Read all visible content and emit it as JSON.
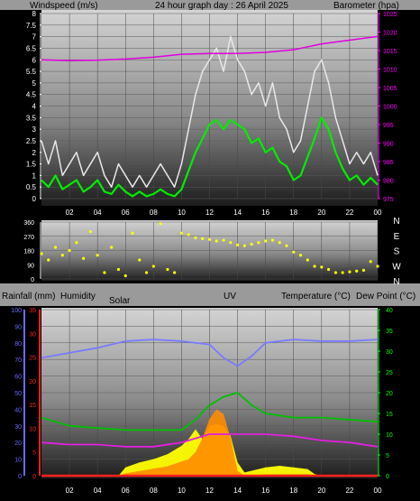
{
  "header": {
    "left": "Windspeed (m/s)",
    "center": "24 hour graph day : 26 April 2025",
    "right": "Barometer (hpa)"
  },
  "mid_header": {
    "rain": "Rainfall (mm)",
    "humidity": "Humidity",
    "solar": "Solar",
    "uv": "UV",
    "temp": "Temperature (°C)",
    "dew": "Dew Point (°C)"
  },
  "colors": {
    "background": "#000000",
    "header_bg": "#9a9a9a",
    "gust": "#e8e8e8",
    "wind_avg": "#00ee00",
    "barometer": "#e000e0",
    "wind_dir": "#ffff00",
    "humidity": "#7a7aff",
    "temperature": "#00c000",
    "dew_point": "#e020e0",
    "solar": "#ffff00",
    "uv": "#ff8c00",
    "rain": "#ff2020",
    "wind_axis": "#ffffff",
    "baro_axis": "#ff00ff",
    "rain_axis": "#ff2020",
    "hum_axis": "#6a6aff",
    "temp_axis": "#00ff00"
  },
  "chart_data": [
    {
      "type": "line",
      "title": "24 hour graph day : 26 April 2025",
      "x_ticks": [
        "02",
        "04",
        "06",
        "08",
        "10",
        "12",
        "14",
        "16",
        "18",
        "20",
        "22",
        "00"
      ],
      "xlim": [
        0,
        24
      ],
      "y_left": {
        "label": "Windspeed (m/s)",
        "lim": [
          0,
          8
        ],
        "ticks": [
          "0",
          "0.5",
          "1",
          "1.5",
          "2",
          "2.5",
          "3",
          "3.5",
          "4",
          "4.5",
          "5",
          "5.5",
          "6",
          "6.5",
          "7",
          "7.5",
          "8"
        ]
      },
      "y_right": {
        "label": "Barometer (hpa)",
        "lim": [
          975,
          1025
        ],
        "ticks": [
          "975",
          "980",
          "985",
          "990",
          "995",
          "1000",
          "1005",
          "1010",
          "1015",
          "1020",
          "1025"
        ]
      },
      "series": [
        {
          "name": "gust",
          "axis": "left",
          "x": [
            0,
            0.5,
            1,
            1.5,
            2,
            2.5,
            3,
            3.5,
            4,
            4.5,
            5,
            5.5,
            6,
            6.5,
            7,
            7.5,
            8,
            8.5,
            9,
            9.5,
            10,
            10.5,
            11,
            11.5,
            12,
            12.5,
            13,
            13.5,
            14,
            14.5,
            15,
            15.5,
            16,
            16.5,
            17,
            17.5,
            18,
            18.5,
            19,
            19.5,
            20,
            20.5,
            21,
            21.5,
            22,
            22.5,
            23,
            23.5,
            24
          ],
          "y": [
            2.5,
            1.5,
            2.5,
            1.0,
            1.5,
            2.0,
            1.0,
            1.5,
            2.0,
            1.0,
            0.5,
            1.5,
            1.0,
            0.5,
            1.0,
            0.5,
            1.0,
            1.5,
            1.0,
            0.5,
            1.5,
            3.0,
            4.5,
            5.5,
            6.0,
            6.5,
            5.5,
            7.0,
            6.0,
            5.5,
            4.5,
            5.0,
            4.0,
            5.0,
            3.5,
            3.0,
            2.0,
            2.5,
            4.0,
            5.5,
            6.0,
            5.0,
            3.5,
            2.5,
            1.5,
            2.0,
            1.5,
            2.0,
            1.0
          ]
        },
        {
          "name": "average",
          "axis": "left",
          "x": [
            0,
            0.5,
            1,
            1.5,
            2,
            2.5,
            3,
            3.5,
            4,
            4.5,
            5,
            5.5,
            6,
            6.5,
            7,
            7.5,
            8,
            8.5,
            9,
            9.5,
            10,
            10.5,
            11,
            11.5,
            12,
            12.5,
            13,
            13.5,
            14,
            14.5,
            15,
            15.5,
            16,
            16.5,
            17,
            17.5,
            18,
            18.5,
            19,
            19.5,
            20,
            20.5,
            21,
            21.5,
            22,
            22.5,
            23,
            23.5,
            24
          ],
          "y": [
            0.8,
            0.5,
            1.0,
            0.4,
            0.6,
            0.8,
            0.3,
            0.5,
            0.8,
            0.3,
            0.2,
            0.6,
            0.3,
            0.1,
            0.3,
            0.1,
            0.2,
            0.4,
            0.2,
            0.1,
            0.4,
            1.2,
            2.0,
            2.6,
            3.2,
            3.4,
            3.0,
            3.4,
            3.2,
            3.0,
            2.4,
            2.6,
            2.0,
            2.2,
            1.6,
            1.4,
            0.8,
            1.0,
            1.8,
            2.6,
            3.5,
            3.0,
            2.0,
            1.3,
            0.8,
            1.0,
            0.6,
            0.9,
            0.6
          ]
        },
        {
          "name": "barometer",
          "axis": "right",
          "x": [
            0,
            2,
            4,
            6,
            8,
            10,
            12,
            14,
            16,
            18,
            20,
            22,
            24
          ],
          "y": [
            1012.5,
            1012.3,
            1012.4,
            1012.7,
            1013.2,
            1014.0,
            1014.2,
            1014.2,
            1014.5,
            1015.2,
            1016.8,
            1017.8,
            1018.8
          ]
        }
      ]
    },
    {
      "type": "scatter",
      "name": "Wind direction",
      "xlim": [
        0,
        24
      ],
      "y_left": {
        "lim": [
          0,
          360
        ],
        "ticks": [
          "0",
          "90",
          "180",
          "270",
          "360"
        ]
      },
      "y_right": {
        "ticks": [
          "N",
          "W",
          "S",
          "E",
          "N"
        ]
      },
      "series": [
        {
          "name": "direction",
          "x": [
            0,
            0.5,
            1,
            1.5,
            2,
            2.5,
            3,
            3.5,
            4,
            4.5,
            5,
            5.5,
            6,
            6.5,
            7,
            7.5,
            8,
            8.5,
            9,
            9.5,
            10,
            10.5,
            11,
            11.5,
            12,
            12.5,
            13,
            13.5,
            14,
            14.5,
            15,
            15.5,
            16,
            16.5,
            17,
            17.5,
            18,
            18.5,
            19,
            19.5,
            20,
            20.5,
            21,
            21.5,
            22,
            22.5,
            23,
            23.5,
            24
          ],
          "y": [
            160,
            120,
            200,
            150,
            180,
            230,
            130,
            300,
            150,
            40,
            200,
            60,
            20,
            290,
            120,
            40,
            80,
            350,
            60,
            40,
            290,
            280,
            260,
            255,
            250,
            240,
            245,
            230,
            215,
            210,
            220,
            230,
            240,
            245,
            230,
            210,
            170,
            150,
            120,
            80,
            75,
            60,
            40,
            40,
            45,
            50,
            55,
            110,
            80
          ]
        }
      ]
    },
    {
      "type": "line",
      "x_ticks": [
        "02",
        "04",
        "06",
        "08",
        "10",
        "12",
        "14",
        "16",
        "18",
        "20",
        "22",
        "00"
      ],
      "xlim": [
        0,
        24
      ],
      "y_humidity": {
        "label": "Humidity",
        "lim": [
          0,
          100
        ],
        "ticks": [
          "0",
          "10",
          "20",
          "30",
          "40",
          "50",
          "60",
          "70",
          "80",
          "90",
          "100"
        ]
      },
      "y_rain": {
        "label": "Rainfall (mm)",
        "lim": [
          0,
          35
        ],
        "ticks": [
          "0",
          "5",
          "10",
          "15",
          "20",
          "25",
          "30",
          "35"
        ]
      },
      "y_temp": {
        "label": "Temperature (°C)",
        "lim": [
          0,
          40
        ],
        "ticks": [
          "0",
          "5",
          "10",
          "15",
          "20",
          "25",
          "30",
          "35",
          "40"
        ]
      },
      "series": [
        {
          "name": "humidity",
          "axis": "humidity",
          "x": [
            0,
            2,
            4,
            6,
            8,
            10,
            12,
            13,
            14,
            15,
            16,
            18,
            20,
            22,
            24
          ],
          "y": [
            71,
            74,
            77,
            81,
            82,
            81,
            79,
            71,
            66,
            72,
            80,
            82,
            81,
            81,
            82
          ]
        },
        {
          "name": "temperature",
          "axis": "temp",
          "x": [
            0,
            2,
            4,
            6,
            8,
            10,
            11,
            12,
            13,
            14,
            15,
            16,
            18,
            20,
            22,
            24
          ],
          "y": [
            14,
            12,
            11.5,
            11,
            11,
            11,
            13.5,
            17,
            19,
            20,
            17,
            15,
            14,
            14,
            13.5,
            13
          ]
        },
        {
          "name": "dew point",
          "axis": "temp",
          "x": [
            0,
            2,
            4,
            6,
            8,
            10,
            12,
            14,
            16,
            18,
            20,
            22,
            24
          ],
          "y": [
            8,
            7.5,
            7.5,
            7,
            7,
            8,
            10,
            10,
            10,
            9.5,
            8.5,
            8,
            7
          ]
        },
        {
          "name": "solar",
          "axis": "humidity",
          "x": [
            0,
            5.5,
            6,
            7,
            8,
            9,
            10,
            10.5,
            11,
            11.5,
            12,
            12.5,
            13,
            13.5,
            14,
            14.5,
            15,
            16,
            17,
            18,
            19,
            19.5,
            20,
            24
          ],
          "y": [
            0,
            0,
            5,
            8,
            10,
            13,
            18,
            22,
            28,
            22,
            30,
            31,
            30,
            24,
            8,
            2,
            3,
            5,
            6,
            5,
            4,
            1,
            0,
            0
          ]
        },
        {
          "name": "uv",
          "axis": "rain",
          "x": [
            0,
            5.5,
            6,
            7,
            8,
            9,
            10,
            10.5,
            11,
            11.5,
            12,
            12.5,
            13,
            13.5,
            14,
            14.5,
            15,
            16,
            17,
            18,
            19,
            19.5,
            20,
            24
          ],
          "y": [
            0,
            0,
            0.5,
            1,
            1.5,
            2,
            3,
            3.5,
            5,
            8,
            12,
            14,
            13,
            8,
            1,
            0,
            0,
            0.3,
            0.3,
            0.3,
            0.3,
            0,
            0,
            0
          ]
        },
        {
          "name": "rain",
          "axis": "rain",
          "x": [
            0,
            24
          ],
          "y": [
            0,
            0
          ]
        }
      ]
    }
  ]
}
